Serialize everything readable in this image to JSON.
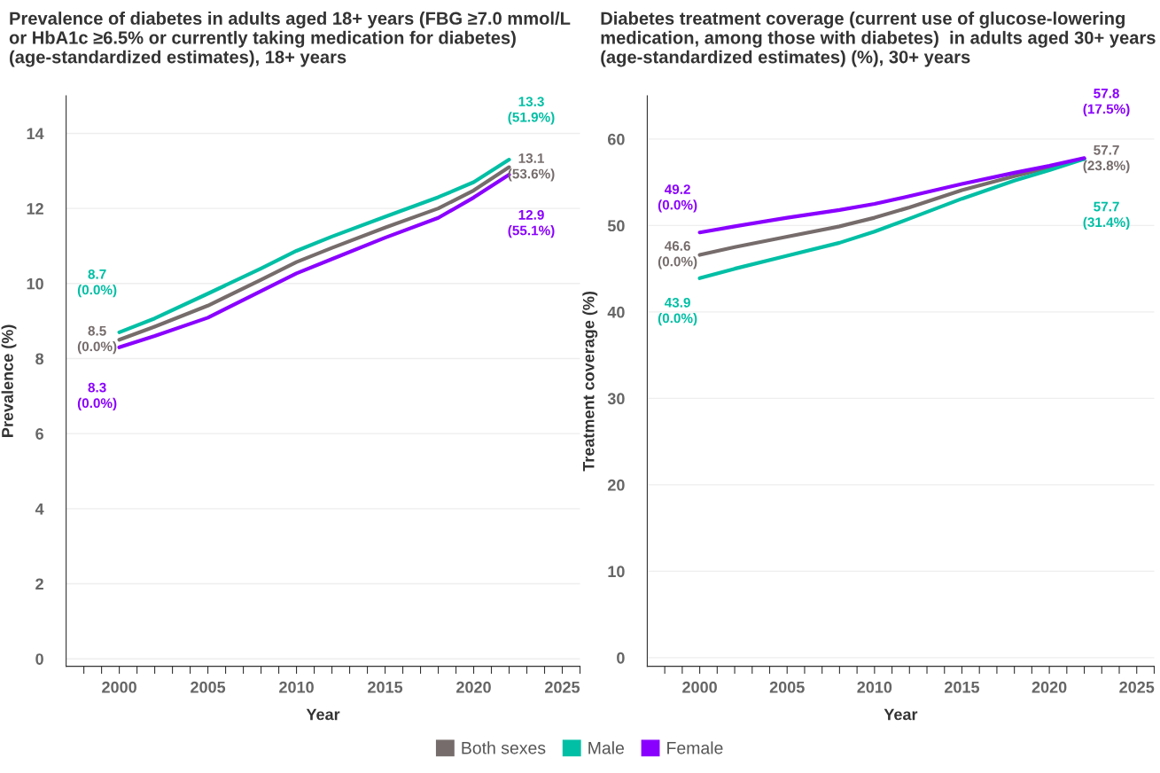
{
  "chart_data": [
    {
      "type": "line",
      "title": "Prevalence of diabetes in adults aged 18+ years (FBG ≥7.0 mmol/L or HbA1c ≥6.5% or currently taking medication for diabetes) (age-standardized estimates), 18+ years",
      "xlabel": "Year",
      "ylabel": "Prevalence (%)",
      "x": [
        2000,
        2002,
        2005,
        2008,
        2010,
        2012,
        2015,
        2018,
        2020,
        2022
      ],
      "series": [
        {
          "name": "Both sexes",
          "color": "#766c6c",
          "values": [
            8.5,
            8.85,
            9.41,
            10.1,
            10.57,
            10.95,
            11.49,
            12.0,
            12.48,
            13.1
          ],
          "value_labels": [
            "8.5\n(0.0%)",
            null,
            null,
            null,
            null,
            null,
            null,
            null,
            null,
            "13.1\n(53.6%)"
          ]
        },
        {
          "name": "Male",
          "color": "#00bfa5",
          "values": [
            8.7,
            9.07,
            9.73,
            10.4,
            10.87,
            11.25,
            11.78,
            12.3,
            12.7,
            13.3
          ],
          "value_labels": [
            "8.7\n(0.0%)",
            null,
            null,
            null,
            null,
            null,
            null,
            null,
            null,
            "13.3\n(51.9%)"
          ]
        },
        {
          "name": "Female",
          "color": "#8a00ff",
          "values": [
            8.3,
            8.6,
            9.09,
            9.8,
            10.27,
            10.65,
            11.22,
            11.75,
            12.29,
            12.9
          ],
          "value_labels": [
            "8.3\n(0.0%)",
            null,
            null,
            null,
            null,
            null,
            null,
            null,
            null,
            "12.9\n(55.1%)"
          ]
        }
      ],
      "xlim": [
        1997,
        2026
      ],
      "ylim": [
        -0.2,
        15
      ],
      "xticks": [
        {
          "value": 1998,
          "label": null
        },
        {
          "value": 1999,
          "label": null
        },
        2000,
        {
          "value": 2001,
          "label": null
        },
        {
          "value": 2002,
          "label": null
        },
        {
          "value": 2003,
          "label": null
        },
        {
          "value": 2004,
          "label": null
        },
        2005,
        {
          "value": 2006,
          "label": null
        },
        {
          "value": 2007,
          "label": null
        },
        {
          "value": 2008,
          "label": null
        },
        {
          "value": 2009,
          "label": null
        },
        2010,
        {
          "value": 2011,
          "label": null
        },
        {
          "value": 2012,
          "label": null
        },
        {
          "value": 2013,
          "label": null
        },
        {
          "value": 2014,
          "label": null
        },
        2015,
        {
          "value": 2016,
          "label": null
        },
        {
          "value": 2017,
          "label": null
        },
        {
          "value": 2018,
          "label": null
        },
        {
          "value": 2019,
          "label": null
        },
        2020,
        {
          "value": 2021,
          "label": null
        },
        {
          "value": 2022,
          "label": null
        },
        {
          "value": 2023,
          "label": null
        },
        {
          "value": 2024,
          "label": null
        },
        2025,
        {
          "value": 2026,
          "label": null
        }
      ],
      "yticks": [
        0,
        2,
        4,
        6,
        8,
        10,
        12,
        14
      ],
      "grid": "y",
      "line_style": "solid",
      "marker": "none",
      "legend": "bottom"
    },
    {
      "type": "line",
      "title": "Diabetes treatment coverage (current use of glucose-lowering medication, among those with diabetes)  in adults aged 30+ years (age-standardized estimates) (%), 30+ years",
      "xlabel": "Year",
      "ylabel": "Treatment coverage (%)",
      "x": [
        2000,
        2002,
        2005,
        2008,
        2010,
        2012,
        2015,
        2018,
        2020,
        2022
      ],
      "series": [
        {
          "color": "#766c6c",
          "values": [
            46.6,
            47.5,
            48.7,
            49.9,
            50.9,
            52.1,
            54.1,
            55.7,
            56.7,
            57.7
          ],
          "value_labels": [
            "46.6\n(0.0%)",
            null,
            null,
            null,
            null,
            null,
            null,
            null,
            null,
            "57.7\n(23.8%)"
          ]
        },
        {
          "color": "#00bfa5",
          "values": [
            43.9,
            45.0,
            46.5,
            48.0,
            49.3,
            50.8,
            53.1,
            55.2,
            56.4,
            57.7
          ],
          "value_labels": [
            "43.9\n(0.0%)",
            null,
            null,
            null,
            null,
            null,
            null,
            null,
            null,
            "57.7\n(31.4%)"
          ]
        },
        {
          "color": "#8a00ff",
          "values": [
            49.2,
            49.9,
            50.9,
            51.8,
            52.5,
            53.4,
            54.8,
            56.1,
            56.9,
            57.8
          ],
          "value_labels": [
            "49.2\n(0.0%)",
            null,
            null,
            null,
            null,
            null,
            null,
            null,
            null,
            "57.8\n(17.5%)"
          ]
        }
      ],
      "xlim": [
        1997,
        2026
      ],
      "ylim": [
        -1,
        65
      ],
      "xticks": [
        {
          "value": 1998,
          "label": null
        },
        {
          "value": 1999,
          "label": null
        },
        2000,
        {
          "value": 2001,
          "label": null
        },
        {
          "value": 2002,
          "label": null
        },
        {
          "value": 2003,
          "label": null
        },
        {
          "value": 2004,
          "label": null
        },
        2005,
        {
          "value": 2006,
          "label": null
        },
        {
          "value": 2007,
          "label": null
        },
        {
          "value": 2008,
          "label": null
        },
        {
          "value": 2009,
          "label": null
        },
        2010,
        {
          "value": 2011,
          "label": null
        },
        {
          "value": 2012,
          "label": null
        },
        {
          "value": 2013,
          "label": null
        },
        {
          "value": 2014,
          "label": null
        },
        2015,
        {
          "value": 2016,
          "label": null
        },
        {
          "value": 2017,
          "label": null
        },
        {
          "value": 2018,
          "label": null
        },
        {
          "value": 2019,
          "label": null
        },
        2020,
        {
          "value": 2021,
          "label": null
        },
        {
          "value": 2022,
          "label": null
        },
        {
          "value": 2023,
          "label": null
        },
        {
          "value": 2024,
          "label": null
        },
        2025,
        {
          "value": 2026,
          "label": null
        }
      ],
      "yticks": [
        0,
        10,
        20,
        30,
        40,
        50,
        60
      ],
      "grid": "y",
      "line_style": "solid",
      "marker": "none"
    }
  ]
}
